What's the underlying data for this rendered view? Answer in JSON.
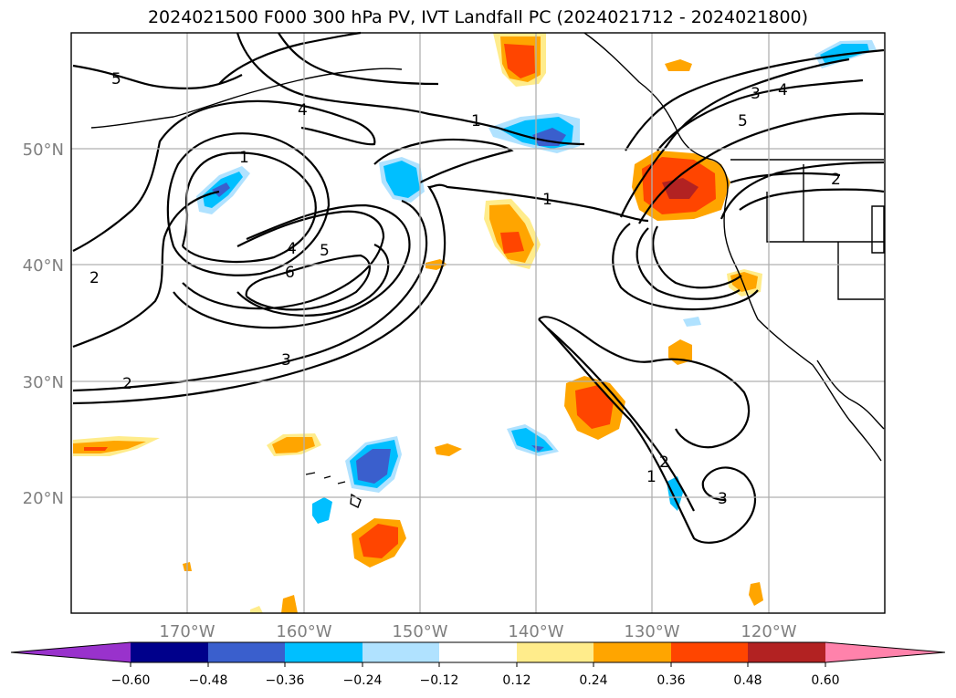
{
  "title": "2024021500 F000 300 hPa PV, IVT Landfall PC (2024021712 - 2024021800)",
  "lat_labels": [
    "50°N",
    "40°N",
    "30°N",
    "20°N"
  ],
  "lon_labels": [
    "170°W",
    "160°W",
    "150°W",
    "140°W",
    "130°W",
    "120°W"
  ],
  "colorbar": {
    "tick_labels": [
      "−0.60",
      "−0.48",
      "−0.36",
      "−0.24",
      "−0.12",
      "0.12",
      "0.24",
      "0.36",
      "0.48",
      "0.60"
    ],
    "colors": [
      "#9932cc",
      "#00008b",
      "#3a5fcd",
      "#00bfff",
      "#b0e2ff",
      "#ffffff",
      "#ffec8b",
      "#ffa500",
      "#ff4500",
      "#b22222",
      "#ff82ab"
    ]
  },
  "contour_labels": [
    "5",
    "4",
    "1",
    "3",
    "4",
    "5",
    "1",
    "1",
    "2",
    "4",
    "5",
    "6",
    "3",
    "2",
    "2",
    "1",
    "2",
    "3"
  ]
}
